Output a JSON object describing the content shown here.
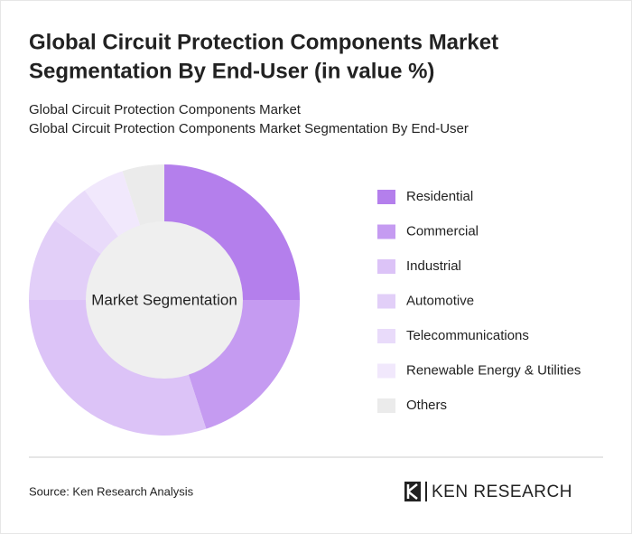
{
  "chart_data": {
    "type": "donut",
    "title": [
      "Global Circuit Protection Components Market",
      "Segmentation By End-User (in value %)"
    ],
    "subtitle": [
      "Global Circuit Protection Components Market",
      "Global Circuit Protection Components Market Segmentation By End-User"
    ],
    "center_label": "Market Segmentation",
    "categories": [
      "Residential",
      "Commercial",
      "Industrial",
      "Automotive",
      "Telecommunications",
      "Renewable Energy & Utilities",
      "Others"
    ],
    "values": [
      25,
      20,
      30,
      10,
      5,
      5,
      5
    ],
    "colors": [
      "#b47fec",
      "#c59bf1",
      "#dcc3f7",
      "#e2cff8",
      "#e9dbfa",
      "#f1e8fc",
      "#ebebeb"
    ],
    "source": "Source: Ken Research Analysis",
    "logo": "KEN RESEARCH"
  }
}
